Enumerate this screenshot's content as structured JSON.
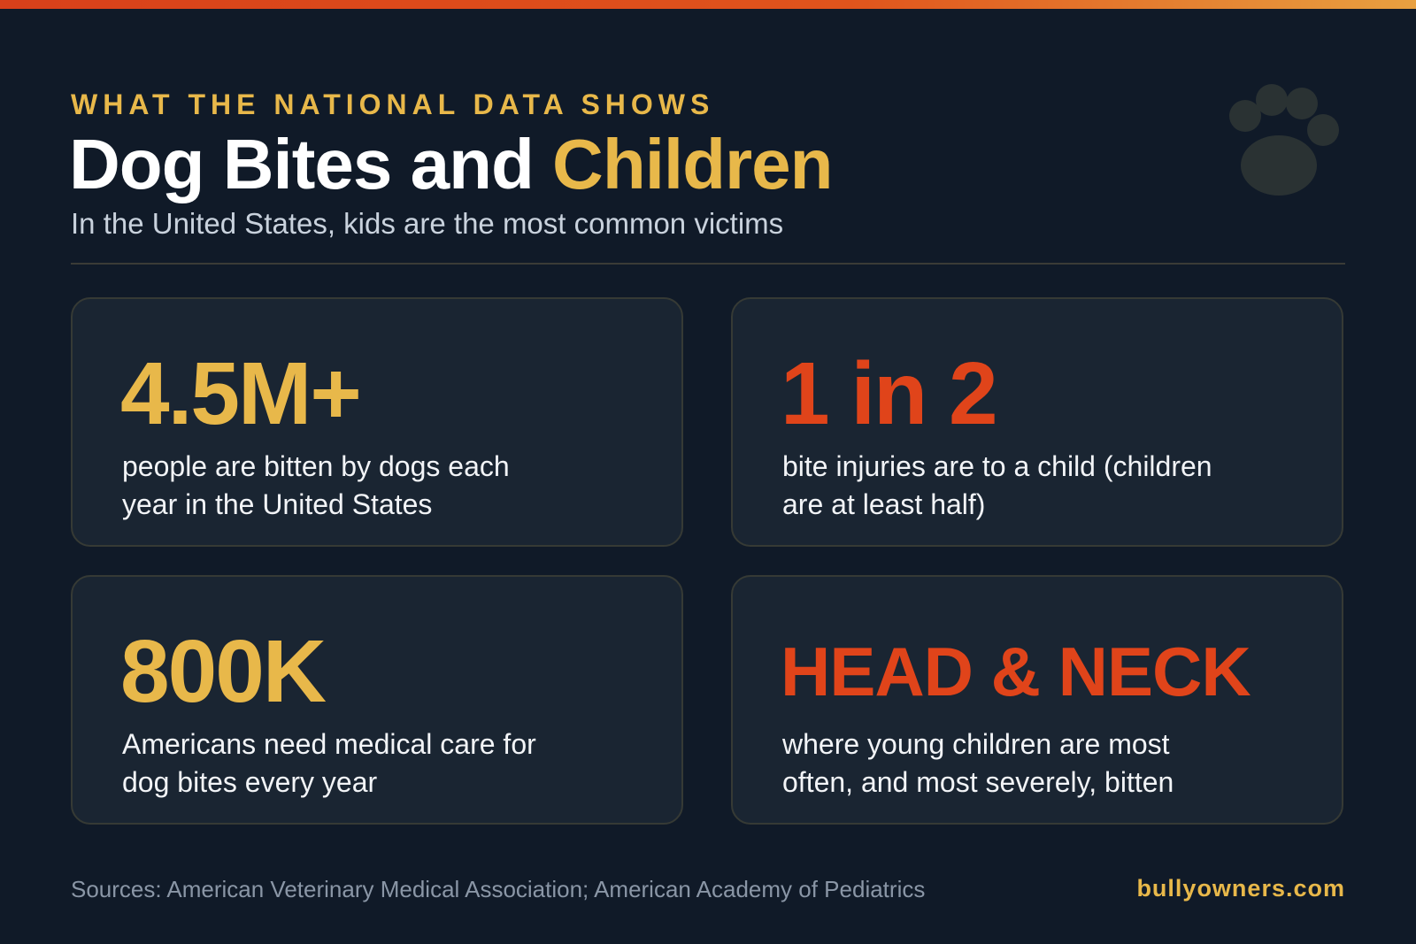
{
  "header": {
    "kicker": "WHAT THE NATIONAL DATA SHOWS",
    "title": "Dog Bites and",
    "title_highlight": "Children",
    "subtitle": "In the United States, kids are the most common victims"
  },
  "cards": [
    {
      "stat": "4.5M+",
      "description": "people are bitten by dogs each year in the United States"
    },
    {
      "stat": "1 in 2",
      "description": "bite injuries are to a child (children are at least half)"
    },
    {
      "stat": "800K",
      "description": "Americans need medical care for dog bites every year"
    },
    {
      "stat": "HEAD & NECK",
      "description": "where young children are most often, and most severely, bitten"
    }
  ],
  "footer": {
    "sources": "Sources: American Veterinary Medical Association; American Academy of Pediatrics",
    "site": "bullyowners.com"
  }
}
